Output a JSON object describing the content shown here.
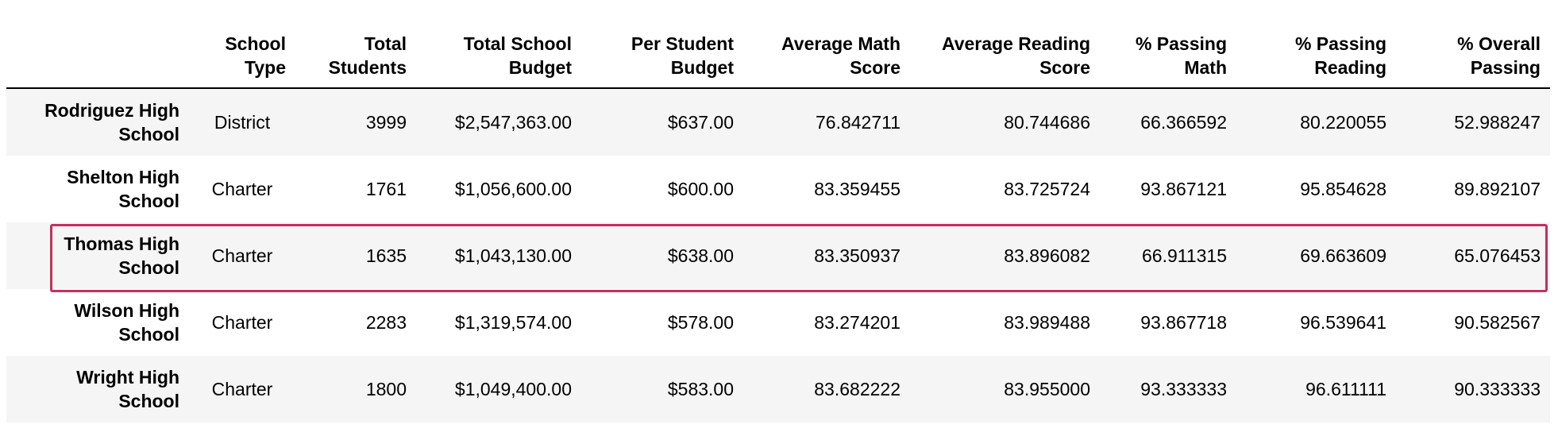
{
  "table": {
    "columns": [
      {
        "key": "school_name",
        "label": ""
      },
      {
        "key": "school_type",
        "label": "School Type"
      },
      {
        "key": "total_students",
        "label": "Total Students"
      },
      {
        "key": "total_budget",
        "label": "Total School Budget"
      },
      {
        "key": "per_student_budget",
        "label": "Per Student Budget"
      },
      {
        "key": "avg_math",
        "label": "Average Math Score"
      },
      {
        "key": "avg_reading",
        "label": "Average Reading Score"
      },
      {
        "key": "pct_math",
        "label": "% Passing Math"
      },
      {
        "key": "pct_reading",
        "label": "% Passing Reading"
      },
      {
        "key": "pct_overall",
        "label": "% Overall Passing"
      }
    ],
    "rows": [
      {
        "school_name": "Rodriguez High School",
        "school_type": "District",
        "total_students": "3999",
        "total_budget": "$2,547,363.00",
        "per_student_budget": "$637.00",
        "avg_math": "76.842711",
        "avg_reading": "80.744686",
        "pct_math": "66.366592",
        "pct_reading": "80.220055",
        "pct_overall": "52.988247"
      },
      {
        "school_name": "Shelton High School",
        "school_type": "Charter",
        "total_students": "1761",
        "total_budget": "$1,056,600.00",
        "per_student_budget": "$600.00",
        "avg_math": "83.359455",
        "avg_reading": "83.725724",
        "pct_math": "93.867121",
        "pct_reading": "95.854628",
        "pct_overall": "89.892107"
      },
      {
        "school_name": "Thomas High School",
        "school_type": "Charter",
        "total_students": "1635",
        "total_budget": "$1,043,130.00",
        "per_student_budget": "$638.00",
        "avg_math": "83.350937",
        "avg_reading": "83.896082",
        "pct_math": "66.911315",
        "pct_reading": "69.663609",
        "pct_overall": "65.076453"
      },
      {
        "school_name": "Wilson High School",
        "school_type": "Charter",
        "total_students": "2283",
        "total_budget": "$1,319,574.00",
        "per_student_budget": "$578.00",
        "avg_math": "83.274201",
        "avg_reading": "83.989488",
        "pct_math": "93.867718",
        "pct_reading": "96.539641",
        "pct_overall": "90.582567"
      },
      {
        "school_name": "Wright High School",
        "school_type": "Charter",
        "total_students": "1800",
        "total_budget": "$1,049,400.00",
        "per_student_budget": "$583.00",
        "avg_math": "83.682222",
        "avg_reading": "83.955000",
        "pct_math": "93.333333",
        "pct_reading": "96.611111",
        "pct_overall": "90.333333"
      }
    ],
    "highlighted_row": "Thomas High School"
  },
  "colors": {
    "highlight_border": "#c0315f",
    "striped_row_bg": "#f5f5f5",
    "header_rule": "#000000"
  }
}
